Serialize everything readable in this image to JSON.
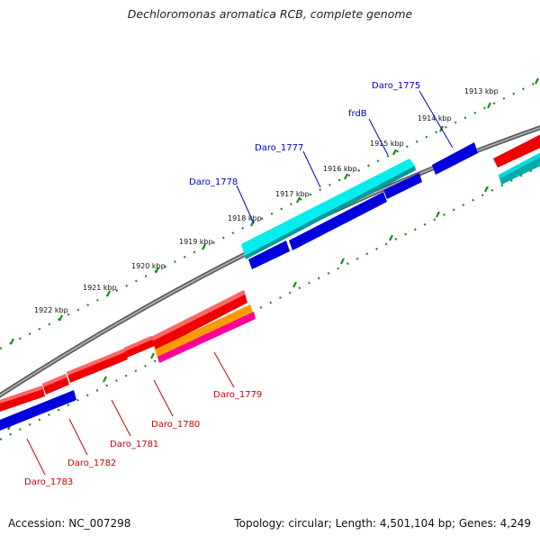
{
  "title": "Dechloromonas aromatica RCB, complete genome",
  "footer": {
    "accession": "Accession: NC_007298",
    "summary": "Topology: circular; Length: 4,501,104 bp; Genes: 4,249"
  },
  "colors": {
    "backbone": "#777777",
    "ticks": "#1a8a1a",
    "forward_label": "#0000cc",
    "reverse_label": "#cc0000",
    "red": "#ee0000",
    "blue": "#0000dd",
    "cyan": "#00eeee",
    "teal": "#00aaaa",
    "orange": "#ff9900",
    "magenta": "#ff0099"
  },
  "kbp_labels": [
    "1913 kbp",
    "1914 kbp",
    "1915 kbp",
    "1916 kbp",
    "1917 kbp",
    "1918 kbp",
    "1919 kbp",
    "1920 kbp",
    "1921 kbp",
    "1922 kbp"
  ],
  "gene_labels_top": [
    "Daro_1775",
    "frdB",
    "Daro_1777",
    "Daro_1778"
  ],
  "gene_labels_bottom": [
    "Daro_1779",
    "Daro_1780",
    "Daro_1781",
    "Daro_1782",
    "Daro_1783"
  ]
}
